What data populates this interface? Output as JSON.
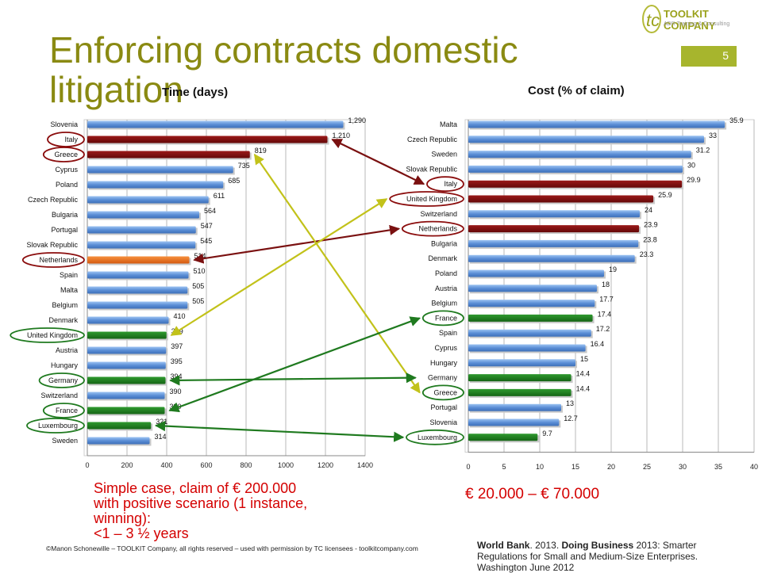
{
  "slide": {
    "title": "Enforcing contracts domestic litigation",
    "page_number": "5",
    "logo": {
      "name": "TOOLKIT COMPANY",
      "tagline": "ADR Training & Consulting"
    },
    "footer": "©Manon Schonewille – TOOLKIT Company, all rights reserved – used with permission by TC licensees  -  toolkitcompany.com",
    "source_bold_1": "World Bank",
    "source_text_1": ". 2013. ",
    "source_bold_2": "Doing Business",
    "source_text_2": " 2013: Smarter Regulations for Small and Medium-Size Enterprises. Washington June 2012",
    "note_left": [
      "Simple case, claim of € 200.000",
      "with positive scenario (1 instance,",
      "winning):",
      "<1 – 3 ½ years"
    ],
    "note_right": "€ 20.000 – € 70.000"
  },
  "colors": {
    "title": "#8a8a12",
    "bar_default": "#5b8ed6",
    "bar_red": "#7a0c0c",
    "bar_orange": "#e86a1a",
    "bar_green": "#1f7a1f",
    "arrow_red": "#7a1010",
    "arrow_green": "#1f7a1f",
    "arrow_yellow": "#c2c21a",
    "ellipse_red": "#8b0d0d",
    "ellipse_green": "#1f7a1f"
  },
  "chart_data": [
    {
      "type": "bar",
      "title": "Time (days)",
      "categories": [
        "Slovenia",
        "Italy",
        "Greece",
        "Cyprus",
        "Poland",
        "Czech Republic",
        "Bulgaria",
        "Portugal",
        "Slovak Republic",
        "Netherlands",
        "Spain",
        "Malta",
        "Belgium",
        "Denmark",
        "United Kingdom",
        "Austria",
        "Hungary",
        "Germany",
        "Switzerland",
        "France",
        "Luxembourg",
        "Sweden"
      ],
      "values": [
        1290,
        1210,
        819,
        735,
        685,
        611,
        564,
        547,
        545,
        514,
        510,
        505,
        505,
        410,
        399,
        397,
        395,
        394,
        390,
        390,
        321,
        314
      ],
      "value_labels": [
        "1,290",
        "1,210",
        "819",
        "735",
        "685",
        "611",
        "564",
        "547",
        "545",
        "514",
        "510",
        "505",
        "505",
        "410",
        "399",
        "397",
        "395",
        "394",
        "390",
        "390",
        "321",
        "314"
      ],
      "highlight": {
        "Italy": "red",
        "Greece": "red",
        "Netherlands": "orange",
        "United Kingdom": "green",
        "Germany": "green",
        "France": "green",
        "Luxembourg": "green"
      },
      "circled": {
        "Italy": "red",
        "Greece": "red",
        "Netherlands": "red",
        "United Kingdom": "green",
        "Germany": "green",
        "France": "green",
        "Luxembourg": "green"
      },
      "xlim": [
        0,
        1400
      ],
      "xticks": [
        "0",
        "200",
        "400",
        "600",
        "800",
        "1000",
        "1200",
        "1400"
      ]
    },
    {
      "type": "bar",
      "title": "Cost (% of claim)",
      "categories": [
        "Malta",
        "Czech  Republic",
        "Sweden",
        "Slovak Republic",
        "Italy",
        "United Kingdom",
        "Switzerland",
        "Netherlands",
        "Bulgaria",
        "Denmark",
        "Poland",
        "Austria",
        "Belgium",
        "France",
        "Spain",
        "Cyprus",
        "Hungary",
        "Germany",
        "Greece",
        "Portugal",
        "Slovenia",
        "Luxembourg"
      ],
      "values": [
        35.9,
        33,
        31.2,
        30,
        29.9,
        25.9,
        24,
        23.9,
        23.8,
        23.3,
        19,
        18,
        17.7,
        17.4,
        17.2,
        16.4,
        15,
        14.4,
        14.4,
        13,
        12.7,
        9.7
      ],
      "value_labels": [
        "35.9",
        "33",
        "31.2",
        "30",
        "29.9",
        "25.9",
        "24",
        "23.9",
        "23.8",
        "23.3",
        "19",
        "18",
        "17.7",
        "17.4",
        "17.2",
        "16.4",
        "15",
        "14.4",
        "14.4",
        "13",
        "12.7",
        "9.7"
      ],
      "highlight": {
        "Italy": "red",
        "United Kingdom": "red",
        "Netherlands": "red",
        "France": "green",
        "Germany": "green",
        "Greece": "green",
        "Luxembourg": "green"
      },
      "circled": {
        "Italy": "red",
        "United Kingdom": "red",
        "Netherlands": "red",
        "France": "green",
        "Greece": "green",
        "Luxembourg": "green"
      },
      "xlim": [
        0,
        40
      ],
      "xticks": [
        "0",
        "5",
        "10",
        "15",
        "20",
        "25",
        "30",
        "35",
        "40"
      ]
    }
  ],
  "arrows": [
    {
      "from": "Italy",
      "to": "Italy",
      "color": "red"
    },
    {
      "from": "Netherlands",
      "to": "Netherlands",
      "color": "red"
    },
    {
      "from": "United Kingdom",
      "to": "United Kingdom",
      "color": "yellow"
    },
    {
      "from": "Greece",
      "to": "Greece",
      "color": "yellow"
    },
    {
      "from": "France",
      "to": "France",
      "color": "green"
    },
    {
      "from": "Germany",
      "to": "Germany",
      "color": "green"
    },
    {
      "from": "Luxembourg",
      "to": "Luxembourg",
      "color": "green"
    }
  ]
}
